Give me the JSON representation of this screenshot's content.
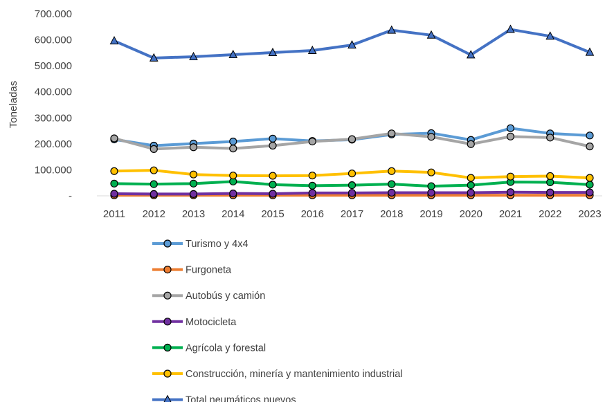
{
  "chart_data": {
    "type": "line",
    "title": "",
    "xlabel": "",
    "ylabel": "Toneladas",
    "ylim": [
      0,
      700000
    ],
    "y_ticks": [
      {
        "value": 0,
        "label": "-"
      },
      {
        "value": 100000,
        "label": "100.000"
      },
      {
        "value": 200000,
        "label": "200.000"
      },
      {
        "value": 300000,
        "label": "300.000"
      },
      {
        "value": 400000,
        "label": "400.000"
      },
      {
        "value": 500000,
        "label": "500.000"
      },
      {
        "value": 600000,
        "label": "600.000"
      },
      {
        "value": 700000,
        "label": "700.000"
      }
    ],
    "categories": [
      "2011",
      "2012",
      "2013",
      "2014",
      "2015",
      "2016",
      "2017",
      "2018",
      "2019",
      "2020",
      "2021",
      "2022",
      "2023"
    ],
    "grid": false,
    "legend_position": "bottom",
    "series": [
      {
        "name": "Turismo y 4x4",
        "color": "#5b9bd5",
        "marker": "circle",
        "values": [
          217000,
          193000,
          201000,
          209000,
          220000,
          211000,
          216000,
          236000,
          241000,
          215000,
          260000,
          240000,
          232000
        ]
      },
      {
        "name": "Furgoneta",
        "color": "#ed7d31",
        "marker": "circle",
        "values": [
          2000,
          2000,
          2000,
          2000,
          2000,
          2000,
          2000,
          2000,
          2000,
          2000,
          2000,
          2000,
          2000
        ]
      },
      {
        "name": "Autobús y camión",
        "color": "#a5a5a5",
        "marker": "circle",
        "values": [
          221000,
          180000,
          187000,
          182000,
          193000,
          209000,
          218000,
          240000,
          227000,
          199000,
          228000,
          224000,
          190000
        ]
      },
      {
        "name": "Motocicleta",
        "color": "#7030a0",
        "marker": "circle",
        "values": [
          8000,
          7000,
          7000,
          9000,
          8000,
          11000,
          11000,
          12000,
          12000,
          12000,
          14000,
          13000,
          13000
        ]
      },
      {
        "name": "Agrícola y forestal",
        "color": "#00b050",
        "marker": "circle",
        "values": [
          47000,
          45000,
          47000,
          55000,
          43000,
          39000,
          41000,
          45000,
          37000,
          41000,
          53000,
          52000,
          43000
        ]
      },
      {
        "name": "Construcción, minería y mantenimiento industrial",
        "color": "#ffc000",
        "marker": "circle",
        "values": [
          95000,
          98000,
          82000,
          78000,
          77000,
          78000,
          86000,
          95000,
          90000,
          69000,
          74000,
          76000,
          69000
        ]
      },
      {
        "name": "Total neumáticos nuevos",
        "color": "#4472c4",
        "marker": "triangle",
        "values": [
          596000,
          530000,
          535000,
          543000,
          551000,
          559000,
          580000,
          637000,
          618000,
          542000,
          640000,
          614000,
          552000
        ]
      }
    ]
  }
}
